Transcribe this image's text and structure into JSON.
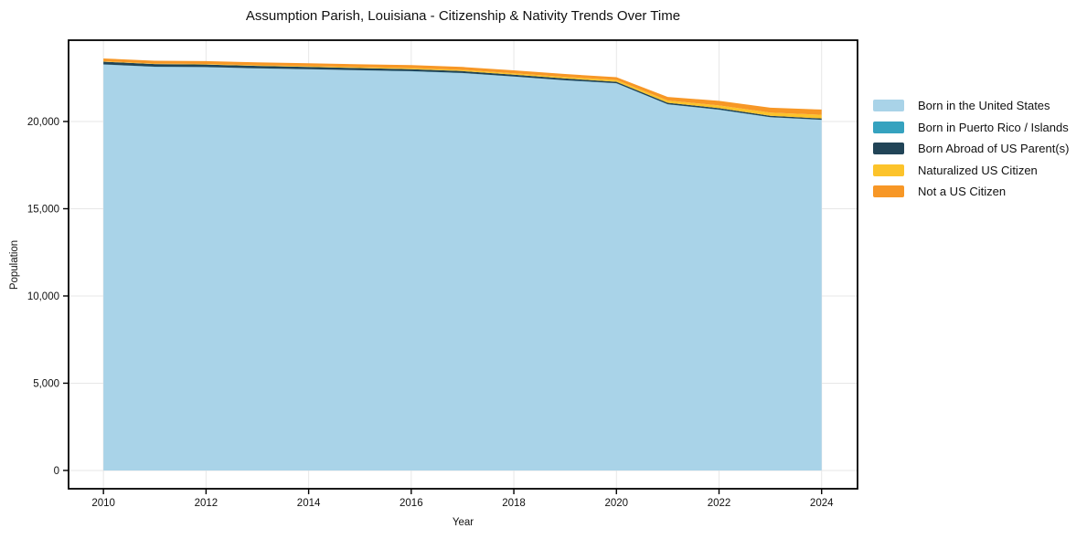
{
  "chart_data": {
    "type": "area",
    "stacked": true,
    "title": "Assumption Parish, Louisiana - Citizenship & Nativity Trends Over Time",
    "xlabel": "Year",
    "ylabel": "Population",
    "x": [
      2010,
      2011,
      2012,
      2013,
      2014,
      2015,
      2016,
      2017,
      2018,
      2019,
      2020,
      2021,
      2022,
      2023,
      2024
    ],
    "series": [
      {
        "name": "Born in the United States",
        "color": "#a9d3e8",
        "values": [
          23265,
          23130,
          23110,
          23040,
          22990,
          22930,
          22875,
          22770,
          22570,
          22355,
          22185,
          20980,
          20670,
          20240,
          20090
        ]
      },
      {
        "name": "Born in Puerto Rico / Islands",
        "color": "#35a2bf",
        "values": [
          10,
          10,
          10,
          10,
          10,
          10,
          10,
          10,
          10,
          10,
          10,
          10,
          10,
          10,
          10
        ]
      },
      {
        "name": "Born Abroad of US Parent(s)",
        "color": "#214457",
        "values": [
          155,
          150,
          145,
          135,
          125,
          120,
          115,
          110,
          105,
          100,
          85,
          85,
          85,
          80,
          75
        ]
      },
      {
        "name": "Naturalized US Citizen",
        "color": "#fcc32b",
        "values": [
          25,
          30,
          35,
          40,
          50,
          55,
          65,
          70,
          80,
          90,
          100,
          130,
          160,
          180,
          210
        ]
      },
      {
        "name": "Not a US Citizen",
        "color": "#f79726",
        "values": [
          160,
          160,
          160,
          165,
          165,
          165,
          165,
          165,
          165,
          165,
          160,
          200,
          260,
          280,
          300
        ]
      }
    ],
    "x_ticks": [
      2010,
      2012,
      2014,
      2016,
      2018,
      2020,
      2022,
      2024
    ],
    "y_ticks": [
      0,
      5000,
      10000,
      15000,
      20000
    ],
    "xlim": [
      2009.32,
      2024.7
    ],
    "ylim": [
      -1050,
      24660
    ],
    "grid": true,
    "legend_position": "right-outside"
  },
  "colors": {
    "background": "#ffffff",
    "grid": "#e7e7e7",
    "spine": "#000000",
    "text": "#111111"
  }
}
